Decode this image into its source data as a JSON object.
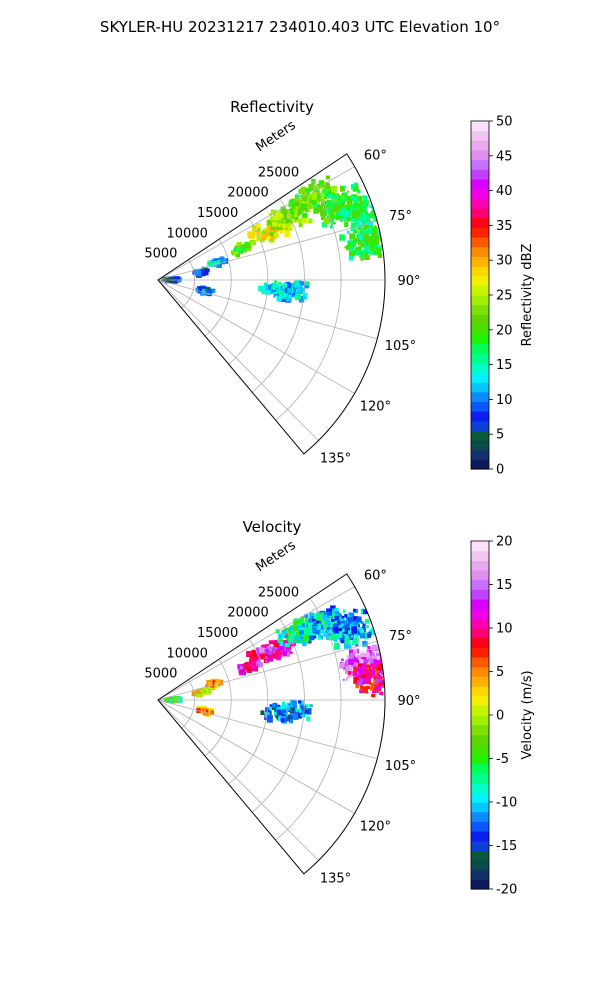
{
  "figure_title": "SKYLER-HU  20231217  234010.403 UTC Elevation 10°",
  "chart_data": [
    {
      "type": "heatmap",
      "subtype": "polar-sector-radar-ppi",
      "title": "Reflectivity",
      "range_axis_label": "Meters",
      "range_ticks": [
        "5000",
        "10000",
        "15000",
        "20000",
        "25000"
      ],
      "range_max_m": 31000,
      "azimuth_ticks": [
        "60°",
        "75°",
        "90°",
        "105°",
        "120°",
        "135°"
      ],
      "azimuth_range_deg": [
        56.25,
        140
      ],
      "grid": true,
      "colorbar": {
        "label": "Reflectivity dBZ",
        "ticks": [
          "0",
          "5",
          "10",
          "15",
          "20",
          "25",
          "30",
          "35",
          "40",
          "45",
          "50"
        ],
        "range": [
          0,
          50
        ],
        "colors": [
          "#0b1a5e",
          "#11306c",
          "#0c4a4a",
          "#0a5a3a",
          "#0c3fd8",
          "#0a1ff0",
          "#0b57ff",
          "#0a8cff",
          "#05c7ff",
          "#00f2ff",
          "#00ffc8",
          "#00ff8a",
          "#00ff55",
          "#22f200",
          "#45e000",
          "#5ed400",
          "#7ee000",
          "#a0ee00",
          "#c8f400",
          "#f0f000",
          "#ffd800",
          "#ffb000",
          "#ff8c00",
          "#ff5a00",
          "#ff2200",
          "#ff0018",
          "#ff0070",
          "#ff00b0",
          "#ee00e8",
          "#d800ff",
          "#c040ff",
          "#c870ff",
          "#e08ef0",
          "#eaa8ee",
          "#f2c4f2",
          "#fbe2fb"
        ]
      },
      "echo_regions": [
        {
          "az": 66,
          "range_m": 17000,
          "value": 27
        },
        {
          "az": 64,
          "range_m": 20000,
          "value": 23
        },
        {
          "az": 62,
          "range_m": 24000,
          "value": 21
        },
        {
          "az": 68,
          "range_m": 27000,
          "value": 19
        },
        {
          "az": 72,
          "range_m": 29500,
          "value": 17
        },
        {
          "az": 80,
          "range_m": 29000,
          "value": 18
        },
        {
          "az": 69,
          "range_m": 12000,
          "value": 21
        },
        {
          "az": 73,
          "range_m": 8500,
          "value": 12
        },
        {
          "az": 80,
          "range_m": 6000,
          "value": 8
        },
        {
          "az": 88,
          "range_m": 2000,
          "value": 6
        },
        {
          "az": 103,
          "range_m": 6500,
          "value": 9
        },
        {
          "az": 95,
          "range_m": 17500,
          "value": 13
        }
      ]
    },
    {
      "type": "heatmap",
      "subtype": "polar-sector-radar-ppi",
      "title": "Velocity",
      "range_axis_label": "Meters",
      "range_ticks": [
        "5000",
        "10000",
        "15000",
        "20000",
        "25000"
      ],
      "range_max_m": 31000,
      "azimuth_ticks": [
        "60°",
        "75°",
        "90°",
        "105°",
        "120°",
        "135°"
      ],
      "azimuth_range_deg": [
        56.25,
        140
      ],
      "grid": true,
      "colorbar": {
        "label": "Velocity (m/s)",
        "ticks": [
          "-20",
          "-15",
          "-10",
          "-5",
          "0",
          "5",
          "10",
          "15",
          "20"
        ],
        "range": [
          -20,
          20
        ],
        "colors": [
          "#0b1a5e",
          "#11306c",
          "#0c4a4a",
          "#0a5a3a",
          "#0c3fd8",
          "#0a1ff0",
          "#0b57ff",
          "#0a8cff",
          "#05c7ff",
          "#00f2ff",
          "#00ffc8",
          "#00ff8a",
          "#00ff55",
          "#22f200",
          "#45e000",
          "#5ed400",
          "#7ee000",
          "#a0ee00",
          "#c8f400",
          "#f0f000",
          "#ffd800",
          "#ffb000",
          "#ff8c00",
          "#ff5a00",
          "#ff2200",
          "#ff0018",
          "#ff0070",
          "#ff00b0",
          "#ee00e8",
          "#d800ff",
          "#c040ff",
          "#c870ff",
          "#e08ef0",
          "#eaa8ee",
          "#f2c4f2",
          "#fbe2fb"
        ]
      },
      "echo_regions": [
        {
          "az": 70,
          "range_m": 13000,
          "value": 11
        },
        {
          "az": 67,
          "range_m": 17000,
          "value": 12
        },
        {
          "az": 64,
          "range_m": 21500,
          "value": -8
        },
        {
          "az": 66,
          "range_m": 25000,
          "value": -10
        },
        {
          "az": 70,
          "range_m": 28000,
          "value": -11
        },
        {
          "az": 80,
          "range_m": 28500,
          "value": 15
        },
        {
          "az": 84,
          "range_m": 29500,
          "value": 10
        },
        {
          "az": 74,
          "range_m": 8000,
          "value": 6
        },
        {
          "az": 79,
          "range_m": 6000,
          "value": 2
        },
        {
          "az": 88,
          "range_m": 2000,
          "value": -6
        },
        {
          "az": 103,
          "range_m": 6500,
          "value": 4
        },
        {
          "az": 95,
          "range_m": 17500,
          "value": -12
        }
      ]
    }
  ]
}
